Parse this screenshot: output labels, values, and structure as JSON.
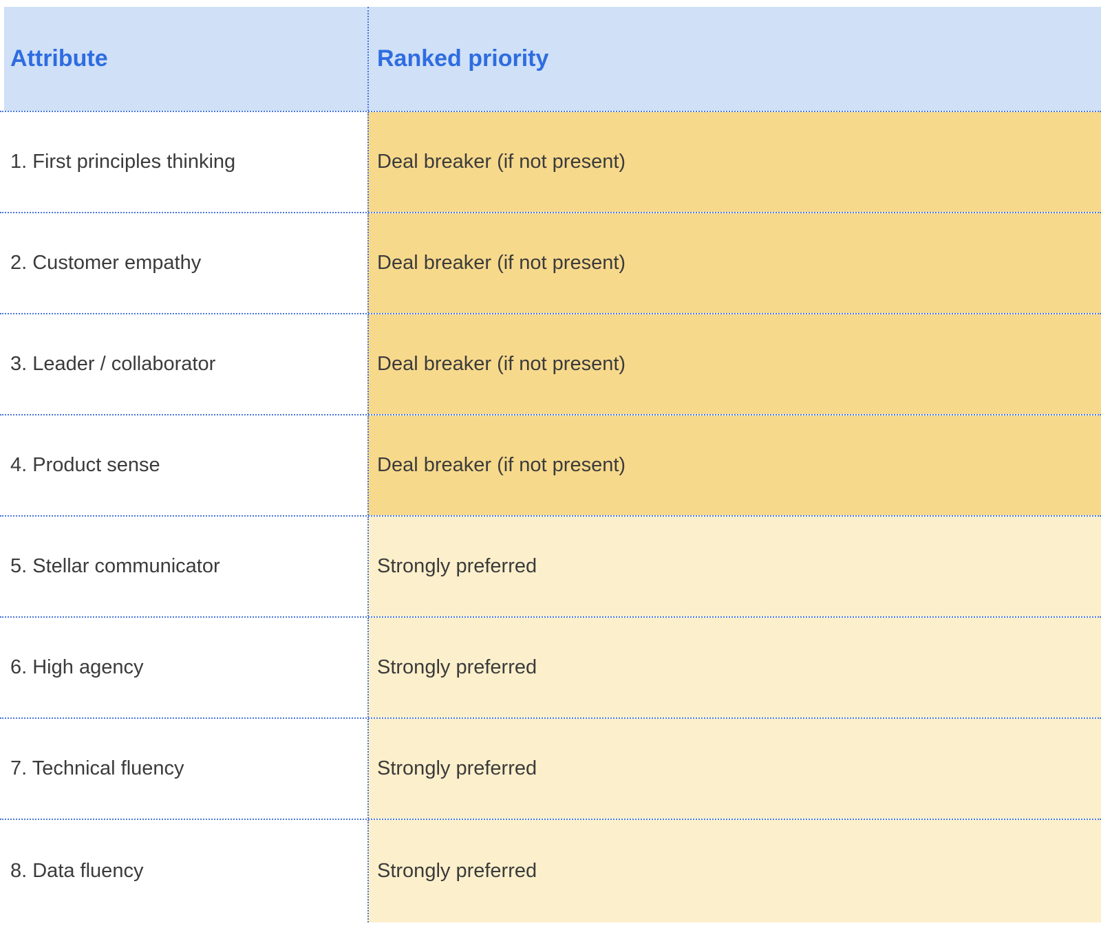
{
  "table": {
    "columns": [
      {
        "label": "Attribute"
      },
      {
        "label": "Ranked priority"
      }
    ],
    "rows": [
      {
        "attribute": "1. First principles thinking",
        "priority": "Deal breaker (if not present)",
        "tier": "deal-breaker"
      },
      {
        "attribute": "2. Customer empathy",
        "priority": "Deal breaker (if not present)",
        "tier": "deal-breaker"
      },
      {
        "attribute": "3. Leader / collaborator",
        "priority": "Deal breaker (if not present)",
        "tier": "deal-breaker"
      },
      {
        "attribute": "4. Product sense",
        "priority": "Deal breaker (if not present)",
        "tier": "deal-breaker"
      },
      {
        "attribute": "5. Stellar communicator",
        "priority": "Strongly preferred",
        "tier": "preferred"
      },
      {
        "attribute": "6. High agency",
        "priority": "Strongly preferred",
        "tier": "preferred"
      },
      {
        "attribute": "7. Technical fluency",
        "priority": "Strongly preferred",
        "tier": "preferred"
      },
      {
        "attribute": "8. Data fluency",
        "priority": "Strongly preferred",
        "tier": "preferred"
      }
    ],
    "colors": {
      "header_bg": "#cfe0f7",
      "header_text": "#2e6ce0",
      "deal_breaker_bg": "#f7d98c",
      "preferred_bg": "#fcefcb",
      "border_blue": "#4674db",
      "body_text": "#3b3b3b"
    }
  }
}
